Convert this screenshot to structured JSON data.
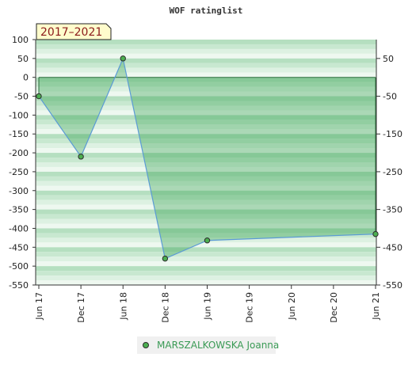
{
  "chart_data": {
    "type": "area",
    "title": "WOF ratinglist",
    "period_badge": "2017–2021",
    "x_categories": [
      "Jun 17",
      "Dec 17",
      "Jun 18",
      "Dec 18",
      "Jun 19",
      "Dec 19",
      "Jun 20",
      "Dec 20",
      "Jun 21"
    ],
    "y_left_ticks": [
      100,
      50,
      0,
      -50,
      -100,
      -150,
      -200,
      -250,
      -300,
      -350,
      -400,
      -450,
      -500,
      -550
    ],
    "y_right_ticks": [
      50,
      -50,
      -150,
      -250,
      -350,
      -450,
      -550
    ],
    "ylim": [
      -550,
      100
    ],
    "series": [
      {
        "name": "MARSZALKOWSKA Joanna",
        "points": [
          {
            "x": "Jun 17",
            "y": -50
          },
          {
            "x": "Dec 17",
            "y": -210
          },
          {
            "x": "Jun 18",
            "y": 50
          },
          {
            "x": "Dec 18",
            "y": -480
          },
          {
            "x": "Jun 19",
            "y": -432
          },
          {
            "x": "Jun 21",
            "y": -415
          }
        ]
      }
    ],
    "baseline": 0,
    "colors": {
      "line": "#5b9bd5",
      "marker": "#4caf50",
      "fill": "#2e9e4a",
      "band_dark": "#b5dfc0",
      "band_light": "#eef8f0",
      "badge_bg": "#fffccc"
    },
    "legend_position": "bottom-center"
  }
}
